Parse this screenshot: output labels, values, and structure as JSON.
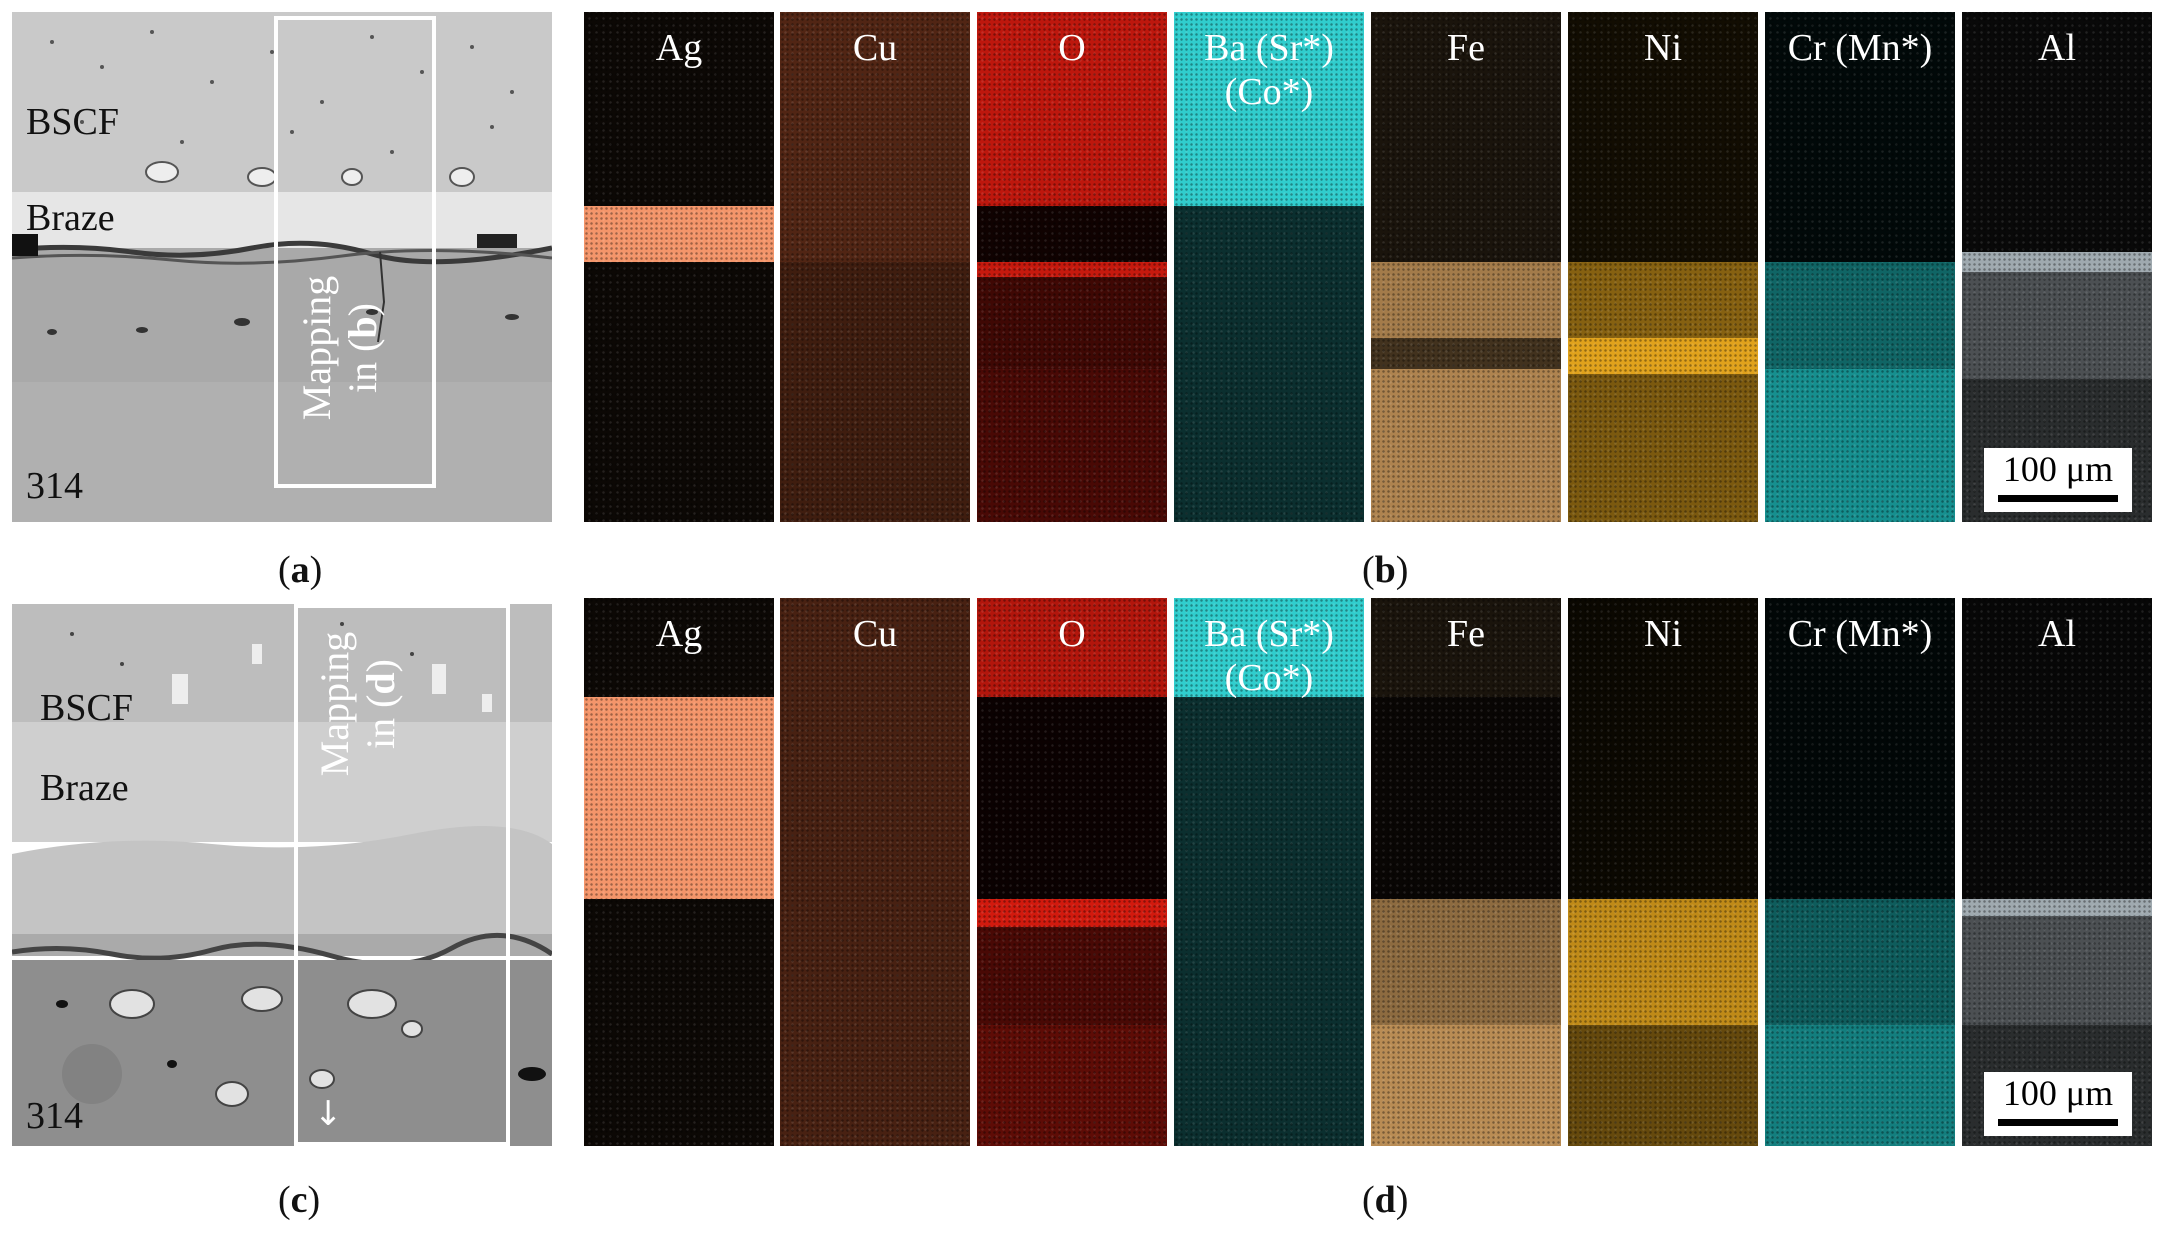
{
  "panels": {
    "a": {
      "caption_open": "(",
      "caption_letter": "a",
      "caption_close": ")",
      "labels": {
        "top": "BSCF",
        "middle": "Braze",
        "sample": "314"
      },
      "mapping_line1": "Mapping",
      "mapping_line2_prefix": "in (",
      "mapping_letter": "b",
      "mapping_line2_suffix": ")"
    },
    "b": {
      "caption_open": "(",
      "caption_letter": "b",
      "caption_close": ")",
      "scale_bar": "100 μm"
    },
    "c": {
      "caption_open": "(",
      "caption_letter": "c",
      "caption_close": ")",
      "labels": {
        "top": "BSCF",
        "middle": "Braze",
        "sample": "314"
      },
      "mapping_line1": "Mapping",
      "mapping_line2_prefix": "in (",
      "mapping_letter": "d",
      "mapping_line2_suffix": ")",
      "arrow_glyph": "↓"
    },
    "d": {
      "caption_open": "(",
      "caption_letter": "d",
      "caption_close": ")",
      "scale_bar": "100 μm"
    }
  },
  "elements": [
    {
      "key": "ag",
      "line1": "Ag",
      "line2": "",
      "color": "#f4956a"
    },
    {
      "key": "cu",
      "line1": "Cu",
      "line2": "",
      "color": "#b4522c"
    },
    {
      "key": "o",
      "line1": "O",
      "line2": "",
      "color": "#d11a0e"
    },
    {
      "key": "ba",
      "line1": "Ba (Sr*)",
      "line2": "(Co*)",
      "color": "#33d8d8"
    },
    {
      "key": "fe",
      "line1": "Fe",
      "line2": "",
      "color": "#d9a463"
    },
    {
      "key": "ni",
      "line1": "Ni",
      "line2": "",
      "color": "#e0a21c"
    },
    {
      "key": "cr",
      "line1": "Cr (Mn*)",
      "line2": "",
      "color": "#1aa8a8"
    },
    {
      "key": "al",
      "line1": "Al",
      "line2": "",
      "color": "#a8b2b8"
    }
  ]
}
